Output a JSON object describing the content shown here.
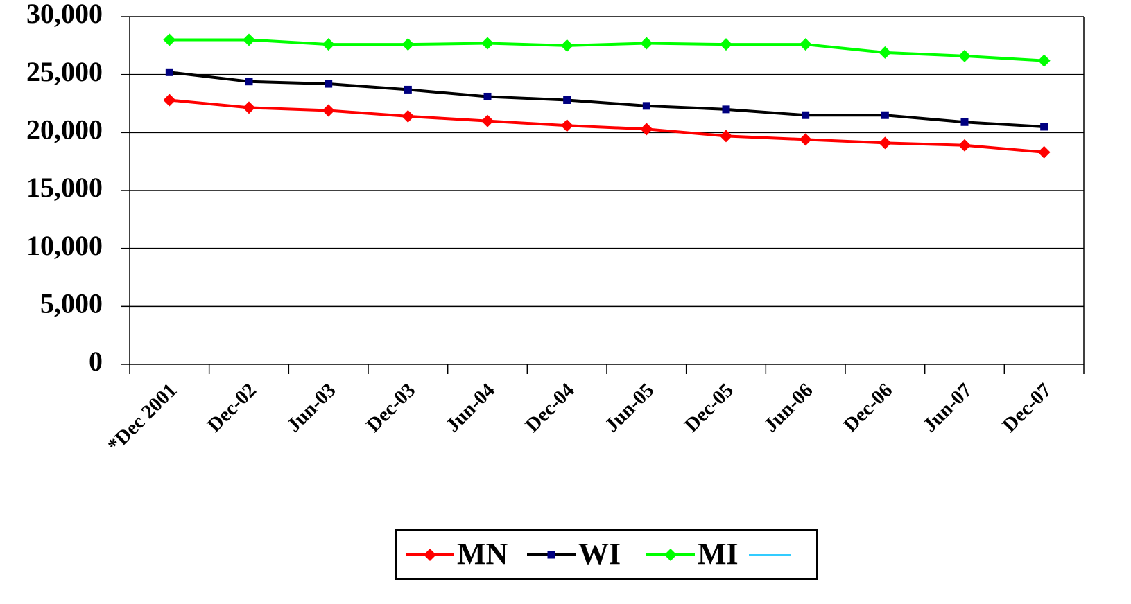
{
  "chart_data": {
    "type": "line",
    "categories": [
      "*Dec 2001",
      "Dec-02",
      "Jun-03",
      "Dec-03",
      "Jun-04",
      "Dec-04",
      "Jun-05",
      "Dec-05",
      "Jun-06",
      "Dec-06",
      "Jun-07",
      "Dec-07"
    ],
    "series": [
      {
        "name": "MN",
        "color": "#ff0000",
        "marker": "diamond",
        "values": [
          22800,
          22150,
          21900,
          21400,
          21000,
          20600,
          20300,
          19700,
          19400,
          19100,
          18900,
          18300
        ]
      },
      {
        "name": "WI",
        "color": "#000000",
        "marker": "square",
        "values": [
          25200,
          24400,
          24200,
          23700,
          23100,
          22800,
          22300,
          22000,
          21500,
          21500,
          20900,
          20500
        ]
      },
      {
        "name": "MI",
        "color": "#00ff00",
        "marker": "diamond",
        "values": [
          28000,
          28000,
          27600,
          27600,
          27700,
          27500,
          27700,
          27600,
          27600,
          26900,
          26600,
          26200
        ]
      }
    ],
    "ylim": [
      0,
      30000
    ],
    "yticks": [
      0,
      {
        "value": 5000,
        "label": "5,000"
      },
      {
        "value": 10000,
        "label": "10,000"
      },
      {
        "value": 15000,
        "label": "15,000"
      },
      {
        "value": 20000,
        "label": "20,000"
      },
      {
        "value": 25000,
        "label": "25,000"
      },
      {
        "value": 30000,
        "label": "30,000"
      }
    ],
    "grid": true
  }
}
